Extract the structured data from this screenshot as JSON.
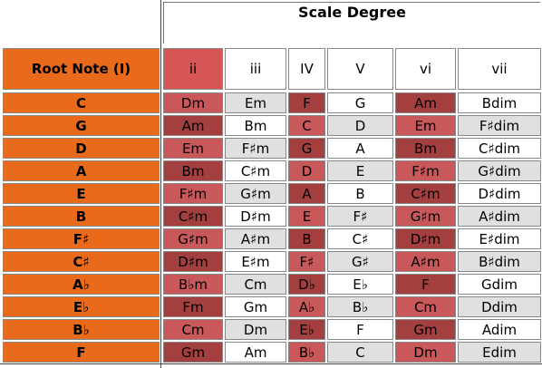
{
  "header": {
    "title": "Scale Degree"
  },
  "table": {
    "root_header": "Root Note (I)",
    "degrees": [
      "ii",
      "iii",
      "IV",
      "V",
      "vi",
      "vii"
    ],
    "rows": [
      {
        "root": "C",
        "cells": [
          "Dm",
          "Em",
          "F",
          "G",
          "Am",
          "Bdim"
        ]
      },
      {
        "root": "G",
        "cells": [
          "Am",
          "Bm",
          "C",
          "D",
          "Em",
          "F♯dim"
        ]
      },
      {
        "root": "D",
        "cells": [
          "Em",
          "F♯m",
          "G",
          "A",
          "Bm",
          "C♯dim"
        ]
      },
      {
        "root": "A",
        "cells": [
          "Bm",
          "C♯m",
          "D",
          "E",
          "F♯m",
          "G♯dim"
        ]
      },
      {
        "root": "E",
        "cells": [
          "F♯m",
          "G♯m",
          "A",
          "B",
          "C♯m",
          "D♯dim"
        ]
      },
      {
        "root": "B",
        "cells": [
          "C♯m",
          "D♯m",
          "E",
          "F♯",
          "G♯m",
          "A♯dim"
        ]
      },
      {
        "root": "F♯",
        "cells": [
          "G♯m",
          "A♯m",
          "B",
          "C♯",
          "D♯m",
          "E♯dim"
        ]
      },
      {
        "root": "C♯",
        "cells": [
          "D♯m",
          "E♯m",
          "F♯",
          "G♯",
          "A♯m",
          "B♯dim"
        ]
      },
      {
        "root": "A♭",
        "cells": [
          "B♭m",
          "Cm",
          "D♭",
          "E♭",
          "F",
          "Gdim"
        ]
      },
      {
        "root": "E♭",
        "cells": [
          "Fm",
          "Gm",
          "A♭",
          "B♭",
          "Cm",
          "Ddim"
        ]
      },
      {
        "root": "B♭",
        "cells": [
          "Cm",
          "Dm",
          "E♭",
          "F",
          "Gm",
          "Adim"
        ]
      },
      {
        "root": "F",
        "cells": [
          "Gm",
          "Am",
          "B♭",
          "C",
          "Dm",
          "Edim"
        ]
      }
    ]
  },
  "colors": {
    "root": "#ea6a1b",
    "minor_light": "#c9585b",
    "minor_dark": "#a43f3f",
    "major_light": "#e0e0e0",
    "major_white": "#ffffff"
  }
}
